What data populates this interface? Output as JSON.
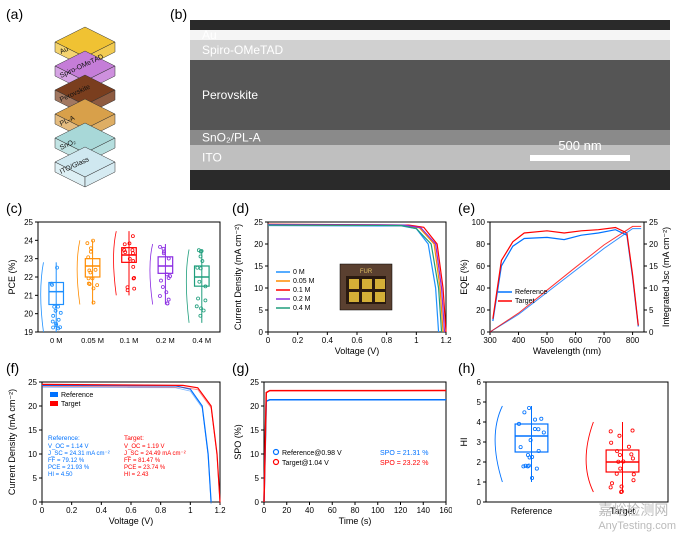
{
  "labels": {
    "a": "(a)",
    "b": "(b)",
    "c": "(c)",
    "d": "(d)",
    "e": "(e)",
    "f": "(f)",
    "g": "(g)",
    "h": "(h)"
  },
  "colors": {
    "bg": "#ffffff",
    "axis": "#000000",
    "text": "#000000",
    "ref": "#0072ff",
    "tgt": "#ff0000",
    "series": [
      "#1e90ff",
      "#ff8c00",
      "#ff0000",
      "#8a2be2",
      "#1f9e7c"
    ],
    "sem_dark": "#3a3a3a",
    "sem_mid": "#6b6b6b",
    "sem_light": "#b0b0b0",
    "sem_white": "#ffffff",
    "au": "#f0c233",
    "spiro": "#c57dd8",
    "perovskite": "#7a3e1e",
    "pla": "#d8a04a",
    "sno2": "#a8d8d8",
    "ito": "#cfe8f0"
  },
  "panel_a": {
    "layers": [
      {
        "name": "Au",
        "color": "#f0c233"
      },
      {
        "name": "Spiro-OMeTAD",
        "color": "#c57dd8"
      },
      {
        "name": "Perovskite",
        "color": "#7a3e1e"
      },
      {
        "name": "PL-A",
        "color": "#d8a04a"
      },
      {
        "name": "SnO₂",
        "color": "#a8d8d8"
      },
      {
        "name": "ITO/Glass",
        "color": "#cfe8f0"
      }
    ]
  },
  "panel_b": {
    "layer_labels": [
      "Au",
      "Spiro-OMeTAD",
      "Perovskite",
      "SnO₂/PL-A",
      "ITO"
    ],
    "scalebar": "500 nm",
    "heights": [
      10,
      20,
      70,
      15,
      25
    ],
    "colors": [
      "#f5f5f5",
      "#d0d0d0",
      "#555555",
      "#8a8a8a",
      "#bfbfbf"
    ]
  },
  "panel_c": {
    "type": "boxplot",
    "xlabel": "",
    "ylabel": "PCE (%)",
    "categories": [
      "0 M",
      "0.05 M",
      "0.1 M",
      "0.2 M",
      "0.4 M"
    ],
    "values": [
      {
        "min": 19.0,
        "q1": 20.5,
        "med": 21.2,
        "q3": 21.7,
        "max": 22.8
      },
      {
        "min": 20.5,
        "q1": 22.0,
        "med": 22.6,
        "q3": 23.0,
        "max": 24.0
      },
      {
        "min": 21.0,
        "q1": 22.8,
        "med": 23.2,
        "q3": 23.6,
        "max": 24.5
      },
      {
        "min": 20.5,
        "q1": 22.2,
        "med": 22.6,
        "q3": 23.1,
        "max": 23.8
      },
      {
        "min": 19.5,
        "q1": 21.5,
        "med": 22.0,
        "q3": 22.6,
        "max": 23.5
      }
    ],
    "colors": [
      "#1e90ff",
      "#ff8c00",
      "#ff0000",
      "#8a2be2",
      "#1f9e7c"
    ],
    "ylim": [
      19,
      25
    ],
    "yticks": [
      19,
      20,
      21,
      22,
      23,
      24,
      25
    ],
    "label_fontsize": 10
  },
  "panel_d": {
    "type": "line",
    "xlabel": "Voltage (V)",
    "ylabel": "Current Density (mA cm⁻²)",
    "xlim": [
      0,
      1.2
    ],
    "xticks": [
      0.0,
      0.2,
      0.4,
      0.6,
      0.8,
      1.0,
      1.2
    ],
    "ylim": [
      0,
      25
    ],
    "yticks": [
      0,
      5,
      10,
      15,
      20,
      25
    ],
    "legend": [
      "0 M",
      "0.05 M",
      "0.1 M",
      "0.2 M",
      "0.4 M"
    ],
    "colors": [
      "#1e90ff",
      "#ff8c00",
      "#ff0000",
      "#8a2be2",
      "#1f9e7c"
    ],
    "series": [
      [
        [
          0,
          24.2
        ],
        [
          0.9,
          24.1
        ],
        [
          1.0,
          23.5
        ],
        [
          1.08,
          20
        ],
        [
          1.13,
          10
        ],
        [
          1.15,
          0
        ]
      ],
      [
        [
          0,
          24.3
        ],
        [
          0.9,
          24.2
        ],
        [
          1.02,
          23.7
        ],
        [
          1.12,
          20
        ],
        [
          1.16,
          10
        ],
        [
          1.18,
          0
        ]
      ],
      [
        [
          0,
          24.5
        ],
        [
          0.95,
          24.3
        ],
        [
          1.05,
          23.8
        ],
        [
          1.14,
          20
        ],
        [
          1.18,
          10
        ],
        [
          1.2,
          0
        ]
      ],
      [
        [
          0,
          24.4
        ],
        [
          0.92,
          24.3
        ],
        [
          1.03,
          23.7
        ],
        [
          1.13,
          20
        ],
        [
          1.17,
          10
        ],
        [
          1.19,
          0
        ]
      ],
      [
        [
          0,
          24.3
        ],
        [
          0.9,
          24.2
        ],
        [
          1.0,
          23.5
        ],
        [
          1.1,
          20
        ],
        [
          1.15,
          10
        ],
        [
          1.17,
          0
        ]
      ]
    ],
    "inset_label": "FUR"
  },
  "panel_e": {
    "type": "line",
    "xlabel": "Wavelength (nm)",
    "ylabel": "EQE (%)",
    "ylabel2": "Integrated Jsc (mA cm⁻²)",
    "xlim": [
      300,
      840
    ],
    "xticks": [
      300,
      400,
      500,
      600,
      700,
      800
    ],
    "ylim": [
      0,
      100
    ],
    "yticks": [
      0,
      20,
      40,
      60,
      80,
      100
    ],
    "ylim2": [
      0,
      25
    ],
    "yticks2": [
      0,
      5,
      10,
      15,
      20,
      25
    ],
    "legend": [
      "Reference",
      "Target"
    ],
    "colors": [
      "#0072ff",
      "#ff0000"
    ],
    "eqe_ref": [
      [
        310,
        10
      ],
      [
        340,
        60
      ],
      [
        380,
        78
      ],
      [
        420,
        85
      ],
      [
        500,
        86
      ],
      [
        560,
        84
      ],
      [
        620,
        88
      ],
      [
        680,
        90
      ],
      [
        740,
        93
      ],
      [
        780,
        88
      ],
      [
        800,
        50
      ],
      [
        820,
        5
      ]
    ],
    "eqe_tgt": [
      [
        310,
        12
      ],
      [
        340,
        65
      ],
      [
        380,
        82
      ],
      [
        420,
        90
      ],
      [
        500,
        92
      ],
      [
        560,
        90
      ],
      [
        620,
        92
      ],
      [
        680,
        93
      ],
      [
        740,
        95
      ],
      [
        780,
        90
      ],
      [
        800,
        52
      ],
      [
        820,
        6
      ]
    ],
    "jsc_ref": [
      [
        300,
        0
      ],
      [
        400,
        4
      ],
      [
        500,
        9
      ],
      [
        600,
        14
      ],
      [
        700,
        19
      ],
      [
        800,
        23.5
      ],
      [
        830,
        23.5
      ]
    ],
    "jsc_tgt": [
      [
        300,
        0
      ],
      [
        400,
        4.3
      ],
      [
        500,
        9.5
      ],
      [
        600,
        14.7
      ],
      [
        700,
        19.8
      ],
      [
        800,
        24
      ],
      [
        830,
        24
      ]
    ]
  },
  "panel_f": {
    "type": "line",
    "xlabel": "Voltage (V)",
    "ylabel": "Current Density (mA cm⁻²)",
    "xlim": [
      0,
      1.2
    ],
    "xticks": [
      0.0,
      0.2,
      0.4,
      0.6,
      0.8,
      1.0,
      1.2
    ],
    "ylim": [
      0,
      25
    ],
    "yticks": [
      0,
      5,
      10,
      15,
      20,
      25
    ],
    "legend": [
      "Reference",
      "Target"
    ],
    "colors": [
      "#0072ff",
      "#ff0000"
    ],
    "series": [
      [
        [
          0,
          24.3
        ],
        [
          0.9,
          24.2
        ],
        [
          1.0,
          23.5
        ],
        [
          1.08,
          20
        ],
        [
          1.12,
          10
        ],
        [
          1.14,
          0
        ]
      ],
      [
        [
          0,
          24.5
        ],
        [
          0.95,
          24.3
        ],
        [
          1.05,
          23.8
        ],
        [
          1.14,
          20
        ],
        [
          1.18,
          10
        ],
        [
          1.2,
          0
        ]
      ]
    ],
    "annot_ref": {
      "title": "Reference:",
      "lines": [
        "V_OC = 1.14 V",
        "J_SC = 24.31 mA cm⁻²",
        "FF = 79.12 %",
        "PCE = 21.93 %",
        "HI = 4.50"
      ],
      "color": "#0072ff"
    },
    "annot_tgt": {
      "title": "Target:",
      "lines": [
        "V_OC = 1.19 V",
        "J_SC = 24.49 mA cm⁻²",
        "FF = 81.47 %",
        "PCE = 23.74 %",
        "HI = 2.43"
      ],
      "color": "#ff0000"
    }
  },
  "panel_g": {
    "type": "line",
    "xlabel": "Time (s)",
    "ylabel": "SPO (%)",
    "xlim": [
      0,
      160
    ],
    "xticks": [
      0,
      20,
      40,
      60,
      80,
      100,
      120,
      140,
      160
    ],
    "ylim": [
      0,
      25
    ],
    "yticks": [
      0,
      5,
      10,
      15,
      20,
      25
    ],
    "legend": [
      "Reference@0.98 V",
      "Target@1.04 V"
    ],
    "colors": [
      "#0072ff",
      "#ff0000"
    ],
    "series": [
      [
        [
          0,
          0
        ],
        [
          2,
          21.0
        ],
        [
          5,
          21.3
        ],
        [
          160,
          21.31
        ]
      ],
      [
        [
          0,
          0
        ],
        [
          2,
          22.8
        ],
        [
          5,
          23.2
        ],
        [
          160,
          23.22
        ]
      ]
    ],
    "annot": [
      {
        "text": "SPO = 21.31 %",
        "color": "#0072ff"
      },
      {
        "text": "SPO = 23.22 %",
        "color": "#ff0000"
      }
    ]
  },
  "panel_h": {
    "type": "boxplot",
    "xlabel": "",
    "ylabel": "HI",
    "categories": [
      "Reference",
      "Target"
    ],
    "values": [
      {
        "min": 1.0,
        "q1": 2.5,
        "med": 3.3,
        "q3": 3.9,
        "max": 4.8
      },
      {
        "min": 0.5,
        "q1": 1.5,
        "med": 2.0,
        "q3": 2.6,
        "max": 4.0
      }
    ],
    "colors": [
      "#0072ff",
      "#ff0000"
    ],
    "ylim": [
      0,
      6
    ],
    "yticks": [
      0,
      1,
      2,
      3,
      4,
      5,
      6
    ]
  },
  "watermark": {
    "cn": "嘉峪检测网",
    "en": "AnyTesting.com"
  }
}
